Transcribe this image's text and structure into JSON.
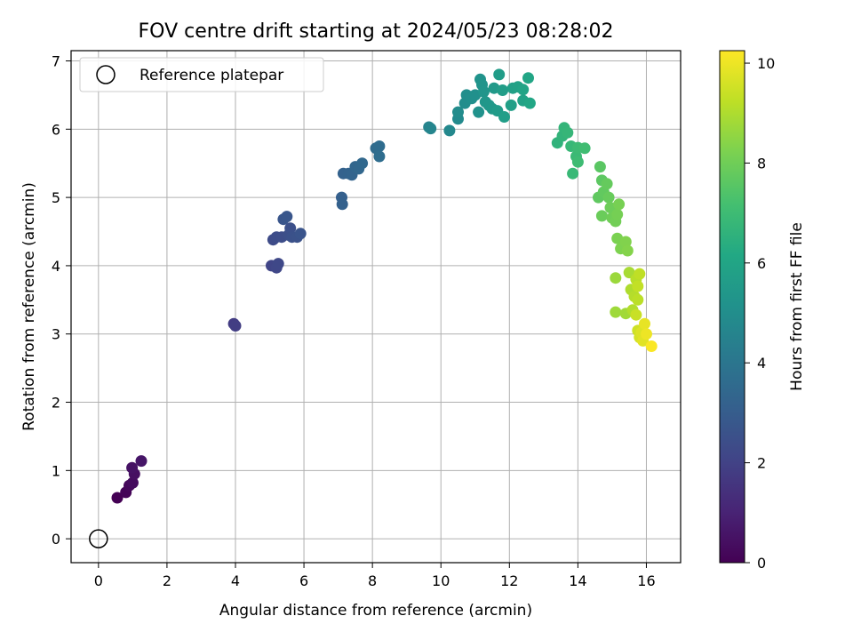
{
  "chart_data": {
    "type": "scatter",
    "title": "FOV centre drift starting at 2024/05/23 08:28:02",
    "xlabel": "Angular distance from reference (arcmin)",
    "ylabel": "Rotation from reference (arcmin)",
    "xlim": [
      -0.8,
      17
    ],
    "ylim": [
      -0.35,
      7.15
    ],
    "xticks": [
      0,
      2,
      4,
      6,
      8,
      10,
      12,
      14,
      16
    ],
    "yticks": [
      0,
      1,
      2,
      3,
      4,
      5,
      6,
      7
    ],
    "grid": true,
    "legend": {
      "placement": "top-left",
      "entries": [
        "Reference platepar"
      ]
    },
    "reference_point": {
      "name": "Reference platepar",
      "x": 0,
      "y": 0
    },
    "colorbar": {
      "label": "Hours from first FF file",
      "range": [
        0,
        10.25
      ],
      "ticks": [
        0,
        2,
        4,
        6,
        8,
        10
      ],
      "colormap": "viridis"
    },
    "series": [
      {
        "points": [
          {
            "x": 0.55,
            "y": 0.6,
            "c": 0.0
          },
          {
            "x": 0.8,
            "y": 0.68,
            "c": 0.1
          },
          {
            "x": 0.9,
            "y": 0.78,
            "c": 0.2
          },
          {
            "x": 1.0,
            "y": 0.82,
            "c": 0.3
          },
          {
            "x": 1.05,
            "y": 0.95,
            "c": 0.4
          },
          {
            "x": 0.98,
            "y": 1.04,
            "c": 0.5
          },
          {
            "x": 1.25,
            "y": 1.14,
            "c": 0.6
          },
          {
            "x": 3.95,
            "y": 3.15,
            "c": 1.8
          },
          {
            "x": 4.0,
            "y": 3.12,
            "c": 1.85
          },
          {
            "x": 5.05,
            "y": 4.0,
            "c": 2.1
          },
          {
            "x": 5.2,
            "y": 3.97,
            "c": 2.15
          },
          {
            "x": 5.25,
            "y": 4.03,
            "c": 2.2
          },
          {
            "x": 5.1,
            "y": 4.38,
            "c": 2.3
          },
          {
            "x": 5.2,
            "y": 4.42,
            "c": 2.35
          },
          {
            "x": 5.35,
            "y": 4.42,
            "c": 2.4
          },
          {
            "x": 5.55,
            "y": 4.45,
            "c": 2.45
          },
          {
            "x": 5.6,
            "y": 4.55,
            "c": 2.5
          },
          {
            "x": 5.65,
            "y": 4.42,
            "c": 2.55
          },
          {
            "x": 5.8,
            "y": 4.42,
            "c": 2.6
          },
          {
            "x": 5.9,
            "y": 4.47,
            "c": 2.65
          },
          {
            "x": 5.4,
            "y": 4.68,
            "c": 2.7
          },
          {
            "x": 5.5,
            "y": 4.72,
            "c": 2.75
          },
          {
            "x": 7.1,
            "y": 5.0,
            "c": 3.1
          },
          {
            "x": 7.12,
            "y": 4.9,
            "c": 3.15
          },
          {
            "x": 7.15,
            "y": 5.35,
            "c": 3.2
          },
          {
            "x": 7.3,
            "y": 5.35,
            "c": 3.25
          },
          {
            "x": 7.4,
            "y": 5.33,
            "c": 3.3
          },
          {
            "x": 7.5,
            "y": 5.45,
            "c": 3.35
          },
          {
            "x": 7.6,
            "y": 5.42,
            "c": 3.4
          },
          {
            "x": 7.7,
            "y": 5.5,
            "c": 3.45
          },
          {
            "x": 8.1,
            "y": 5.72,
            "c": 3.55
          },
          {
            "x": 8.2,
            "y": 5.75,
            "c": 3.6
          },
          {
            "x": 8.2,
            "y": 5.6,
            "c": 3.65
          },
          {
            "x": 9.65,
            "y": 6.03,
            "c": 4.6
          },
          {
            "x": 9.7,
            "y": 6.01,
            "c": 4.65
          },
          {
            "x": 10.25,
            "y": 5.98,
            "c": 4.75
          },
          {
            "x": 10.5,
            "y": 6.15,
            "c": 4.85
          },
          {
            "x": 10.5,
            "y": 6.25,
            "c": 4.9
          },
          {
            "x": 10.7,
            "y": 6.38,
            "c": 4.95
          },
          {
            "x": 10.75,
            "y": 6.5,
            "c": 5.0
          },
          {
            "x": 10.9,
            "y": 6.45,
            "c": 5.05
          },
          {
            "x": 11.0,
            "y": 6.5,
            "c": 5.1
          },
          {
            "x": 11.1,
            "y": 6.25,
            "c": 5.15
          },
          {
            "x": 11.15,
            "y": 6.73,
            "c": 5.2
          },
          {
            "x": 11.2,
            "y": 6.65,
            "c": 5.25
          },
          {
            "x": 11.25,
            "y": 6.55,
            "c": 5.3
          },
          {
            "x": 11.3,
            "y": 6.4,
            "c": 5.35
          },
          {
            "x": 11.4,
            "y": 6.35,
            "c": 5.4
          },
          {
            "x": 11.5,
            "y": 6.3,
            "c": 5.45
          },
          {
            "x": 11.55,
            "y": 6.6,
            "c": 5.5
          },
          {
            "x": 11.65,
            "y": 6.27,
            "c": 5.55
          },
          {
            "x": 11.7,
            "y": 6.8,
            "c": 5.6
          },
          {
            "x": 11.8,
            "y": 6.57,
            "c": 5.65
          },
          {
            "x": 11.85,
            "y": 6.18,
            "c": 5.7
          },
          {
            "x": 12.05,
            "y": 6.35,
            "c": 5.75
          },
          {
            "x": 12.1,
            "y": 6.6,
            "c": 5.8
          },
          {
            "x": 12.25,
            "y": 6.62,
            "c": 5.85
          },
          {
            "x": 12.4,
            "y": 6.42,
            "c": 5.9
          },
          {
            "x": 12.4,
            "y": 6.58,
            "c": 5.95
          },
          {
            "x": 12.55,
            "y": 6.75,
            "c": 6.0
          },
          {
            "x": 12.6,
            "y": 6.38,
            "c": 6.05
          },
          {
            "x": 13.4,
            "y": 5.8,
            "c": 6.6
          },
          {
            "x": 13.55,
            "y": 5.9,
            "c": 6.65
          },
          {
            "x": 13.6,
            "y": 6.02,
            "c": 6.7
          },
          {
            "x": 13.7,
            "y": 5.95,
            "c": 6.75
          },
          {
            "x": 13.8,
            "y": 5.75,
            "c": 6.8
          },
          {
            "x": 13.85,
            "y": 5.35,
            "c": 6.85
          },
          {
            "x": 13.95,
            "y": 5.6,
            "c": 6.9
          },
          {
            "x": 14.0,
            "y": 5.73,
            "c": 6.95
          },
          {
            "x": 14.0,
            "y": 5.52,
            "c": 7.0
          },
          {
            "x": 14.2,
            "y": 5.72,
            "c": 7.05
          },
          {
            "x": 14.65,
            "y": 5.45,
            "c": 7.6
          },
          {
            "x": 14.7,
            "y": 5.25,
            "c": 7.65
          },
          {
            "x": 14.6,
            "y": 5.0,
            "c": 7.7
          },
          {
            "x": 14.75,
            "y": 5.08,
            "c": 7.75
          },
          {
            "x": 14.85,
            "y": 5.2,
            "c": 7.8
          },
          {
            "x": 14.9,
            "y": 5.0,
            "c": 7.85
          },
          {
            "x": 14.7,
            "y": 4.73,
            "c": 7.9
          },
          {
            "x": 14.95,
            "y": 4.85,
            "c": 7.95
          },
          {
            "x": 15.0,
            "y": 4.7,
            "c": 8.0
          },
          {
            "x": 15.1,
            "y": 4.65,
            "c": 8.05
          },
          {
            "x": 15.15,
            "y": 4.75,
            "c": 8.1
          },
          {
            "x": 15.2,
            "y": 4.9,
            "c": 8.15
          },
          {
            "x": 15.15,
            "y": 4.4,
            "c": 8.2
          },
          {
            "x": 15.25,
            "y": 4.25,
            "c": 8.25
          },
          {
            "x": 15.4,
            "y": 4.35,
            "c": 8.3
          },
          {
            "x": 15.45,
            "y": 4.22,
            "c": 8.35
          },
          {
            "x": 15.1,
            "y": 3.82,
            "c": 8.7
          },
          {
            "x": 15.1,
            "y": 3.32,
            "c": 8.75
          },
          {
            "x": 15.4,
            "y": 3.3,
            "c": 8.8
          },
          {
            "x": 15.5,
            "y": 3.9,
            "c": 8.9
          },
          {
            "x": 15.55,
            "y": 3.65,
            "c": 9.0
          },
          {
            "x": 15.6,
            "y": 3.35,
            "c": 9.05
          },
          {
            "x": 15.65,
            "y": 3.55,
            "c": 9.1
          },
          {
            "x": 15.7,
            "y": 3.8,
            "c": 9.15
          },
          {
            "x": 15.75,
            "y": 3.5,
            "c": 9.2
          },
          {
            "x": 15.8,
            "y": 3.88,
            "c": 9.25
          },
          {
            "x": 15.75,
            "y": 3.7,
            "c": 9.3
          },
          {
            "x": 15.7,
            "y": 3.28,
            "c": 9.4
          },
          {
            "x": 15.75,
            "y": 3.05,
            "c": 9.5
          },
          {
            "x": 15.8,
            "y": 2.95,
            "c": 9.6
          },
          {
            "x": 15.85,
            "y": 3.02,
            "c": 9.7
          },
          {
            "x": 15.9,
            "y": 2.9,
            "c": 9.8
          },
          {
            "x": 15.95,
            "y": 3.15,
            "c": 9.9
          },
          {
            "x": 16.0,
            "y": 3.0,
            "c": 10.0
          },
          {
            "x": 16.15,
            "y": 2.82,
            "c": 10.2
          }
        ]
      }
    ]
  }
}
